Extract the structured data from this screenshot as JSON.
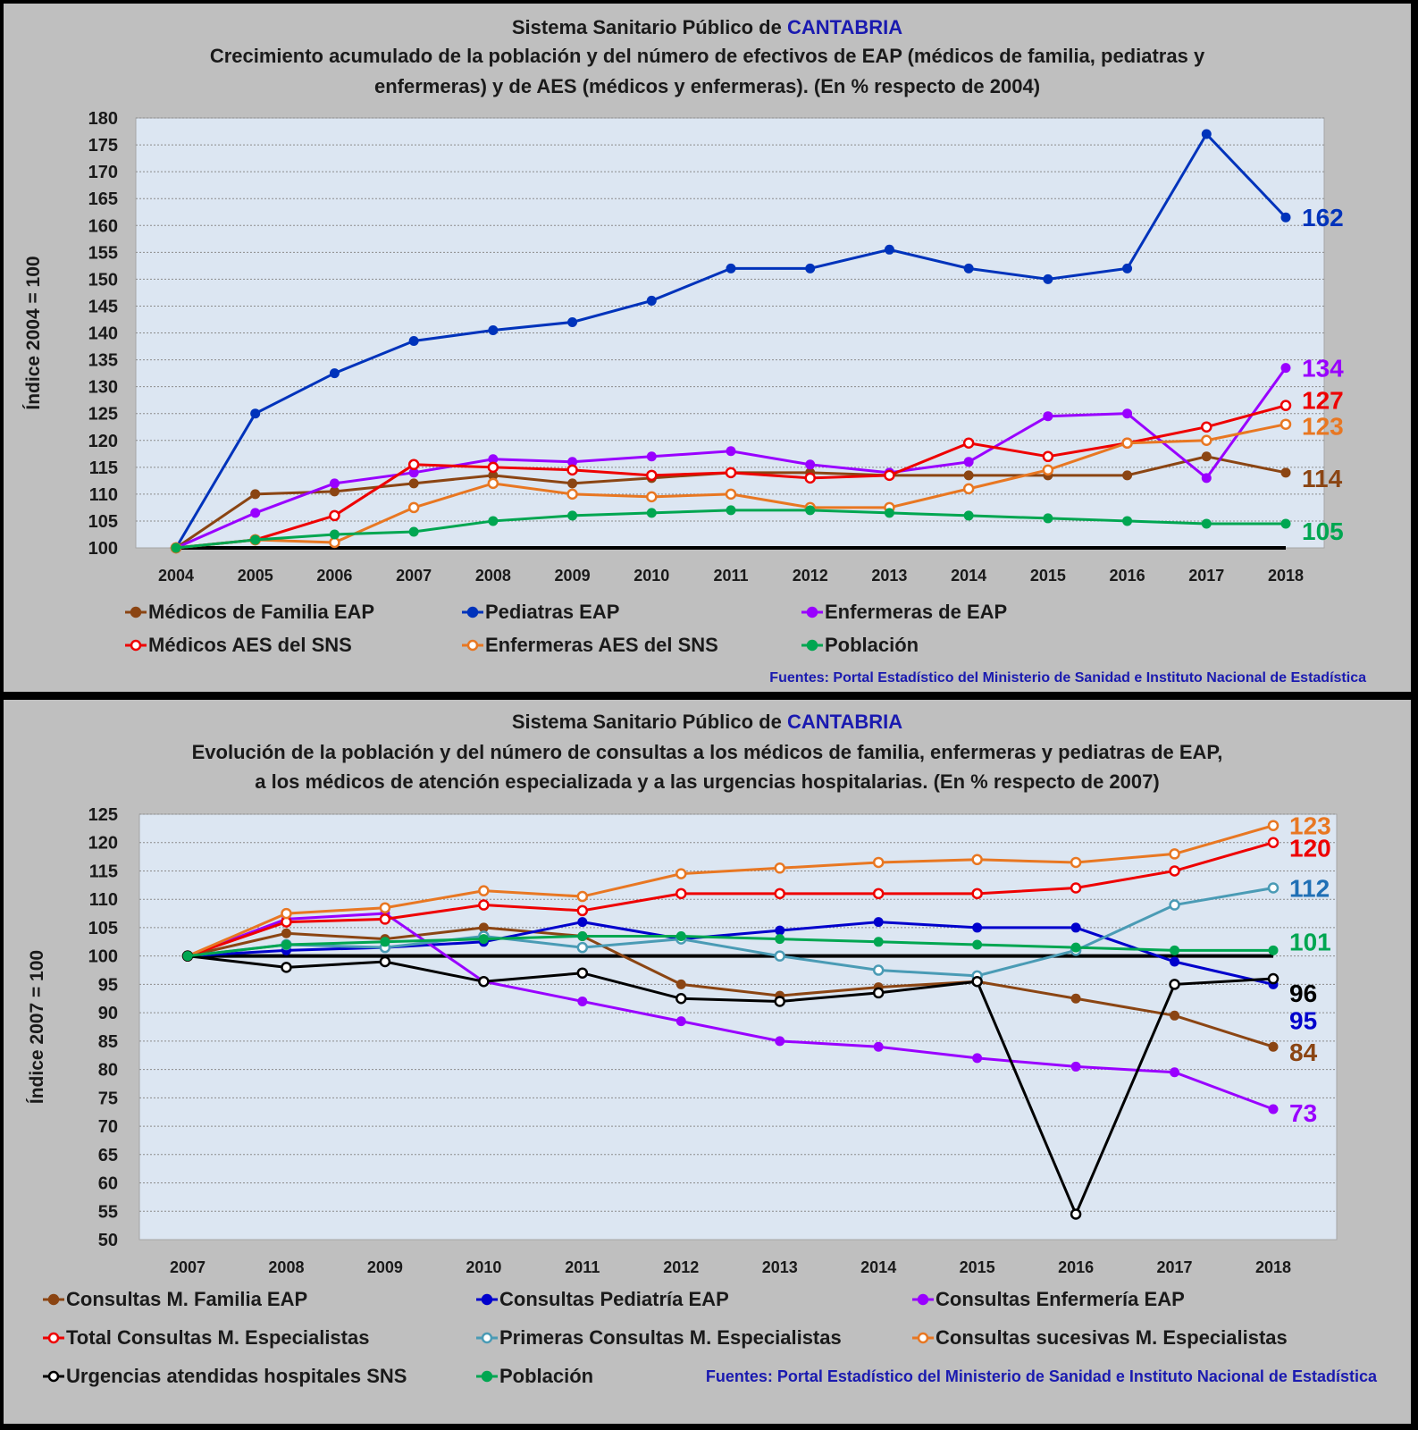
{
  "chart_data": [
    {
      "type": "line",
      "title_line1_prefix": "Sistema Sanitario Público de ",
      "title_line1_highlight": "CANTABRIA",
      "title_line2": "Crecimiento acumulado de la población y del número de efectivos de EAP (médicos de familia, pediatras y",
      "title_line3": "enfermeras) y de AES (médicos y enfermeras). (En % respecto de 2004)",
      "xlabel": "",
      "ylabel": "Índice 2004 = 100",
      "ylim": [
        100,
        180
      ],
      "ytick_step": 5,
      "grid": true,
      "legend_position": "bottom",
      "baseline": 100,
      "x": [
        "2004",
        "2005",
        "2006",
        "2007",
        "2008",
        "2009",
        "2010",
        "2011",
        "2012",
        "2013",
        "2014",
        "2015",
        "2016",
        "2017",
        "2018"
      ],
      "series": [
        {
          "name": "Médicos de Familia EAP",
          "color": "#8b4513",
          "marker": "filled",
          "end_label": "114",
          "values": [
            100,
            110,
            110.5,
            112,
            113.5,
            112,
            113,
            114,
            114,
            113.5,
            113.5,
            113.5,
            113.5,
            117,
            114
          ]
        },
        {
          "name": "Pediatras EAP",
          "color": "#0033bb",
          "marker": "filled",
          "end_label": "162",
          "values": [
            100,
            125,
            132.5,
            138.5,
            140.5,
            142,
            146,
            152,
            152,
            155.5,
            152,
            150,
            152,
            177,
            161.5
          ]
        },
        {
          "name": "Enfermeras de EAP",
          "color": "#9900ff",
          "marker": "filled",
          "end_label": "134",
          "values": [
            100,
            106.5,
            112,
            114,
            116.5,
            116,
            117,
            118,
            115.5,
            114,
            116,
            124.5,
            125,
            113,
            133.5
          ]
        },
        {
          "name": "Médicos AES del SNS",
          "color": "#ee0000",
          "marker": "hollow",
          "end_label": "127",
          "values": [
            100,
            101.5,
            106,
            115.5,
            115,
            114.5,
            113.5,
            114,
            113,
            113.5,
            119.5,
            117,
            119.5,
            122.5,
            126.5
          ]
        },
        {
          "name": "Enfermeras AES del SNS",
          "color": "#e87722",
          "marker": "hollow",
          "end_label": "123",
          "values": [
            100,
            101.5,
            101,
            107.5,
            112,
            110,
            109.5,
            110,
            107.5,
            107.5,
            111,
            114.5,
            119.5,
            120,
            123
          ]
        },
        {
          "name": "Población",
          "color": "#00a651",
          "marker": "filled",
          "end_label": "105",
          "values": [
            100,
            101.5,
            102.5,
            103,
            105,
            106,
            106.5,
            107,
            107,
            106.5,
            106,
            105.5,
            105,
            104.5,
            104.5
          ]
        }
      ],
      "source": "Fuentes:  Portal Estadístico del Ministerio de Sanidad e Instituto Nacional de Estadística"
    },
    {
      "type": "line",
      "title_line1_prefix": "Sistema Sanitario Público de ",
      "title_line1_highlight": "CANTABRIA",
      "title_line2": "Evolución de la población y del número de consultas a los médicos de familia, enfermeras y pediatras de EAP,",
      "title_line3": "a los médicos de atención especializada y a las urgencias hospitalarias.  (En % respecto de 2007)",
      "xlabel": "",
      "ylabel": "Índice 2007 = 100",
      "ylim": [
        50,
        125
      ],
      "ytick_step": 5,
      "grid": true,
      "legend_position": "bottom",
      "baseline": 100,
      "x": [
        "2007",
        "2008",
        "2009",
        "2010",
        "2011",
        "2012",
        "2013",
        "2014",
        "2015",
        "2016",
        "2017",
        "2018"
      ],
      "series": [
        {
          "name": "Consultas M. Familia EAP",
          "color": "#8b4513",
          "marker": "filled",
          "end_label": "84",
          "values": [
            100,
            104,
            103,
            105,
            103.5,
            95,
            93,
            94.5,
            95.5,
            92.5,
            89.5,
            84
          ]
        },
        {
          "name": "Consultas Pediatría EAP",
          "color": "#0000cc",
          "marker": "filled",
          "end_label": "95",
          "values": [
            100,
            101,
            101.5,
            102.5,
            106,
            103,
            104.5,
            106,
            105,
            105,
            99,
            95
          ]
        },
        {
          "name": "Consultas Enfermería EAP",
          "color": "#9900ff",
          "marker": "filled",
          "end_label": "73",
          "values": [
            100,
            106.5,
            107.5,
            95.5,
            92,
            88.5,
            85,
            84,
            82,
            80.5,
            79.5,
            73
          ]
        },
        {
          "name": "Total Consultas M. Especialistas",
          "color": "#ee0000",
          "marker": "hollow",
          "end_label": "120",
          "values": [
            100,
            106,
            106.5,
            109,
            108,
            111,
            111,
            111,
            111,
            112,
            115,
            120
          ]
        },
        {
          "name": "Primeras Consultas M. Especialistas",
          "color": "#4a9bb5",
          "marker": "hollow",
          "end_label": "112",
          "values": [
            100,
            102,
            101.5,
            103.5,
            101.5,
            103,
            100,
            97.5,
            96.5,
            101,
            109,
            112
          ]
        },
        {
          "name": "Consultas sucesivas M. Especialistas",
          "color": "#e87722",
          "marker": "hollow",
          "end_label": "123",
          "values": [
            100,
            107.5,
            108.5,
            111.5,
            110.5,
            114.5,
            115.5,
            116.5,
            117,
            116.5,
            118,
            123
          ]
        },
        {
          "name": "Urgencias atendidas hospitales SNS",
          "color": "#000000",
          "marker": "hollow",
          "end_label": "96",
          "values": [
            100,
            98,
            99,
            95.5,
            97,
            92.5,
            92,
            93.5,
            95.5,
            54.5,
            95,
            96
          ]
        },
        {
          "name": "Población",
          "color": "#00a651",
          "marker": "filled",
          "end_label": "101",
          "values": [
            100,
            102,
            102.5,
            103,
            103.5,
            103.5,
            103,
            102.5,
            102,
            101.5,
            101,
            101
          ]
        }
      ],
      "source": "Fuentes: Portal Estadístico del Ministerio de Sanidad e Instituto Nacional de Estadística"
    }
  ]
}
